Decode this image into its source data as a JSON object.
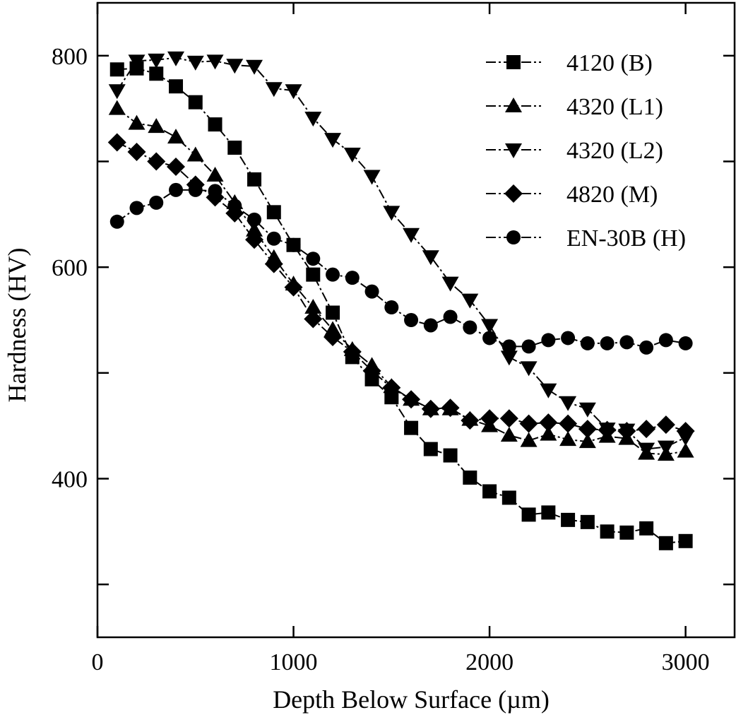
{
  "chart_data": {
    "type": "line",
    "title": "",
    "xlabel": "Depth Below Surface (µm)",
    "ylabel": "Hardness (HV)",
    "xlim": [
      0,
      3250
    ],
    "ylim": [
      250,
      850
    ],
    "x_ticks": [
      0,
      1000,
      2000,
      3000
    ],
    "x_tick_labels": [
      "0",
      "1000",
      "2000",
      "3000"
    ],
    "y_ticks": [
      300,
      400,
      500,
      600,
      700,
      800
    ],
    "y_tick_labels": [
      "",
      "400",
      "",
      "600",
      "",
      "800"
    ],
    "grid": false,
    "legend_position": "top-right",
    "x": [
      100,
      200,
      300,
      400,
      500,
      600,
      700,
      800,
      900,
      1000,
      1100,
      1200,
      1300,
      1400,
      1500,
      1600,
      1700,
      1800,
      1900,
      2000,
      2100,
      2200,
      2300,
      2400,
      2500,
      2600,
      2700,
      2800,
      2900,
      3000
    ],
    "series": [
      {
        "name": "4120 (B)",
        "marker": "square",
        "values": [
          787,
          788,
          783,
          771,
          756,
          735,
          713,
          683,
          652,
          621,
          593,
          557,
          515,
          494,
          477,
          448,
          428,
          422,
          401,
          388,
          382,
          366,
          368,
          361,
          359,
          350,
          349,
          353,
          339,
          341
        ]
      },
      {
        "name": "4320 (L1)",
        "marker": "triangle-up",
        "values": [
          750,
          736,
          733,
          723,
          706,
          687,
          661,
          635,
          609,
          584,
          562,
          541,
          522,
          507,
          487,
          475,
          466,
          466,
          456,
          450,
          441,
          436,
          442,
          437,
          435,
          440,
          438,
          424,
          423,
          426
        ]
      },
      {
        "name": "4320 (L2)",
        "marker": "triangle-down",
        "values": [
          767,
          795,
          796,
          798,
          794,
          795,
          791,
          790,
          769,
          767,
          741,
          721,
          707,
          686,
          652,
          631,
          610,
          585,
          569,
          545,
          515,
          505,
          484,
          472,
          466,
          447,
          446,
          428,
          430,
          439
        ]
      },
      {
        "name": "4820 (M)",
        "marker": "diamond",
        "values": [
          718,
          709,
          700,
          695,
          678,
          666,
          651,
          626,
          603,
          581,
          551,
          534,
          520,
          502,
          486,
          475,
          466,
          467,
          455,
          457,
          457,
          452,
          453,
          452,
          447,
          446,
          445,
          447,
          451,
          445
        ]
      },
      {
        "name": "EN-30B (H)",
        "marker": "circle",
        "values": [
          643,
          656,
          661,
          673,
          673,
          672,
          658,
          645,
          627,
          621,
          608,
          593,
          590,
          577,
          562,
          550,
          545,
          553,
          543,
          533,
          525,
          525,
          531,
          533,
          528,
          528,
          529,
          524,
          531,
          528
        ]
      }
    ]
  }
}
